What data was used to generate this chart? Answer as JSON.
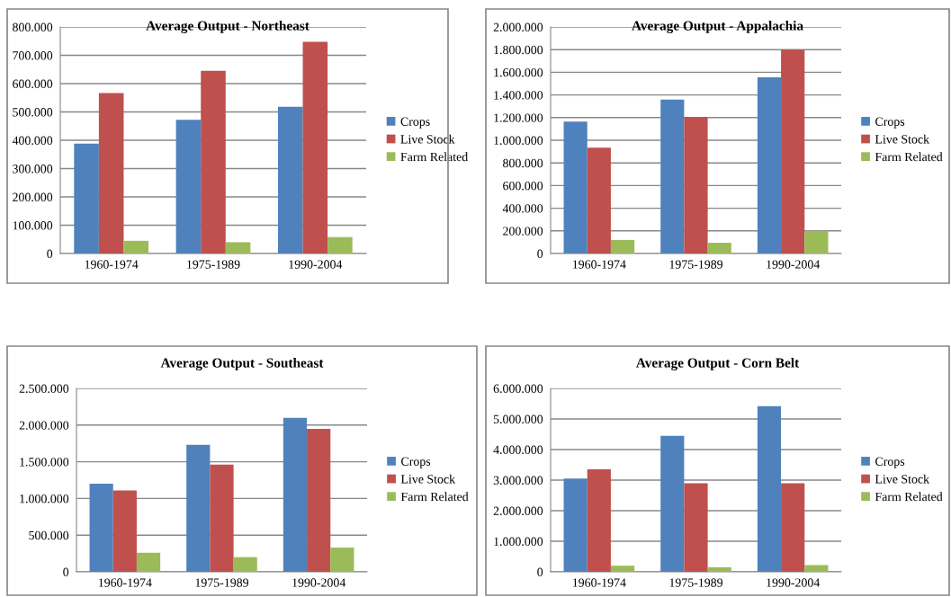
{
  "chart_data": [
    {
      "type": "bar",
      "title": "Average Output - Northeast",
      "categories": [
        "1960-1974",
        "1975-1989",
        "1990-2004"
      ],
      "ylim": [
        0,
        800000
      ],
      "yticks": [
        {
          "value": 0,
          "label": "0"
        },
        {
          "value": 100000,
          "label": "100.000"
        },
        {
          "value": 200000,
          "label": "200.000"
        },
        {
          "value": 300000,
          "label": "300.000"
        },
        {
          "value": 400000,
          "label": "400.000"
        },
        {
          "value": 500000,
          "label": "500.000"
        },
        {
          "value": 600000,
          "label": "600.000"
        },
        {
          "value": 700000,
          "label": "700.000"
        },
        {
          "value": 800000,
          "label": "800.000"
        }
      ],
      "grid": "y",
      "legend": "right",
      "series": [
        {
          "name": "Crops",
          "color": "#4f81bd",
          "values": [
            388000,
            472000,
            518000
          ]
        },
        {
          "name": "Live Stock",
          "color": "#c0504d",
          "values": [
            567000,
            645000,
            748000
          ]
        },
        {
          "name": "Farm Related",
          "color": "#9bbb59",
          "values": [
            45000,
            40000,
            58000
          ]
        }
      ]
    },
    {
      "type": "bar",
      "title": "Average Output - Appalachia",
      "categories": [
        "1960-1974",
        "1975-1989",
        "1990-2004"
      ],
      "ylim": [
        0,
        2000000
      ],
      "yticks": [
        {
          "value": 0,
          "label": "0"
        },
        {
          "value": 200000,
          "label": "200.000"
        },
        {
          "value": 400000,
          "label": "400.000"
        },
        {
          "value": 600000,
          "label": "600.000"
        },
        {
          "value": 800000,
          "label": "800.000"
        },
        {
          "value": 1000000,
          "label": "1.000.000"
        },
        {
          "value": 1200000,
          "label": "1.200.000"
        },
        {
          "value": 1400000,
          "label": "1.400.000"
        },
        {
          "value": 1600000,
          "label": "1.600.000"
        },
        {
          "value": 1800000,
          "label": "1.800.000"
        },
        {
          "value": 2000000,
          "label": "2.000.000"
        }
      ],
      "grid": "y",
      "legend": "right",
      "series": [
        {
          "name": "Crops",
          "color": "#4f81bd",
          "values": [
            1165000,
            1360000,
            1555000
          ]
        },
        {
          "name": "Live Stock",
          "color": "#c0504d",
          "values": [
            935000,
            1205000,
            1800000
          ]
        },
        {
          "name": "Farm Related",
          "color": "#9bbb59",
          "values": [
            120000,
            95000,
            200000
          ]
        }
      ]
    },
    {
      "type": "bar",
      "title": "Average Output - Southeast",
      "categories": [
        "1960-1974",
        "1975-1989",
        "1990-2004"
      ],
      "ylim": [
        0,
        2500000
      ],
      "yticks": [
        {
          "value": 0,
          "label": "0"
        },
        {
          "value": 500000,
          "label": "500.000"
        },
        {
          "value": 1000000,
          "label": "1.000.000"
        },
        {
          "value": 1500000,
          "label": "1.500.000"
        },
        {
          "value": 2000000,
          "label": "2.000.000"
        },
        {
          "value": 2500000,
          "label": "2.500.000"
        }
      ],
      "grid": "y",
      "legend": "right",
      "series": [
        {
          "name": "Crops",
          "color": "#4f81bd",
          "values": [
            1200000,
            1730000,
            2100000
          ]
        },
        {
          "name": "Live Stock",
          "color": "#c0504d",
          "values": [
            1110000,
            1460000,
            1950000
          ]
        },
        {
          "name": "Farm Related",
          "color": "#9bbb59",
          "values": [
            260000,
            200000,
            330000
          ]
        }
      ]
    },
    {
      "type": "bar",
      "title": "Average Output - Corn Belt",
      "categories": [
        "1960-1974",
        "1975-1989",
        "1990-2004"
      ],
      "ylim": [
        0,
        6000000
      ],
      "yticks": [
        {
          "value": 0,
          "label": "0"
        },
        {
          "value": 1000000,
          "label": "1.000.000"
        },
        {
          "value": 2000000,
          "label": "2.000.000"
        },
        {
          "value": 3000000,
          "label": "3.000.000"
        },
        {
          "value": 4000000,
          "label": "4.000.000"
        },
        {
          "value": 5000000,
          "label": "5.000.000"
        },
        {
          "value": 6000000,
          "label": "6.000.000"
        }
      ],
      "grid": "y",
      "legend": "right",
      "series": [
        {
          "name": "Crops",
          "color": "#4f81bd",
          "values": [
            3050000,
            4450000,
            5420000
          ]
        },
        {
          "name": "Live Stock",
          "color": "#c0504d",
          "values": [
            3350000,
            2900000,
            2900000
          ]
        },
        {
          "name": "Farm Related",
          "color": "#9bbb59",
          "values": [
            200000,
            150000,
            220000
          ]
        }
      ]
    }
  ]
}
